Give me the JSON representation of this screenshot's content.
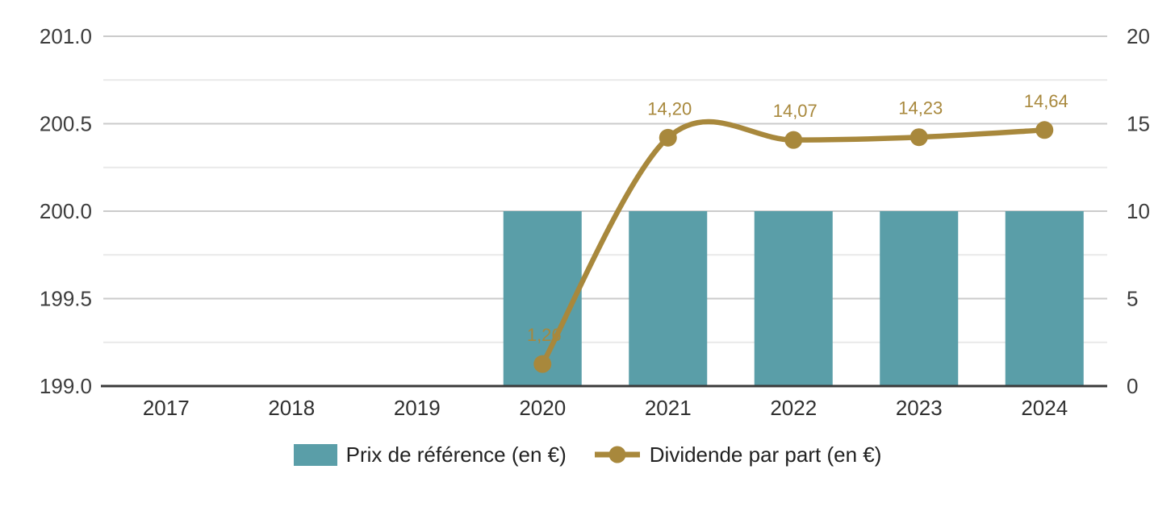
{
  "chart_data": {
    "type": "bar",
    "subtype": "combo-bar-line",
    "title": "",
    "categories": [
      "2017",
      "2018",
      "2019",
      "2020",
      "2021",
      "2022",
      "2023",
      "2024"
    ],
    "series": [
      {
        "name": "Prix de référence (en €)",
        "type": "bar",
        "axis": "left",
        "color": "#5A9EA8",
        "values": [
          null,
          null,
          null,
          200.0,
          200.0,
          200.0,
          200.0,
          200.0
        ]
      },
      {
        "name": "Dividende par part (en €)",
        "type": "line",
        "axis": "right",
        "color": "#A8883C",
        "values": [
          null,
          null,
          null,
          1.26,
          14.2,
          14.07,
          14.23,
          14.64
        ],
        "point_labels": [
          null,
          null,
          null,
          "1,26",
          "14,20",
          "14,07",
          "14,23",
          "14,64"
        ]
      }
    ],
    "left_axis": {
      "min": 199.0,
      "max": 201.0,
      "major_step": 0.5,
      "minor_step": 0.25,
      "tick_labels": [
        "199.0",
        "199.5",
        "200.0",
        "200.5",
        "201.0"
      ]
    },
    "right_axis": {
      "min": 0,
      "max": 20,
      "major_step": 5,
      "minor_step": 2.5,
      "tick_labels": [
        "0",
        "5",
        "10",
        "15",
        "20"
      ]
    },
    "grid": true,
    "legend_position": "bottom"
  },
  "legend": {
    "items": [
      {
        "label": "Prix de référence (en €)",
        "color": "#5A9EA8",
        "symbol": "square"
      },
      {
        "label": "Dividende par part (en €)",
        "color": "#A8883C",
        "symbol": "line-dot"
      }
    ]
  },
  "colors": {
    "bar": "#5A9EA8",
    "line": "#A8883C",
    "grid_major": "#CBCBCB",
    "grid_minor": "#E9E9E9",
    "axis_baseline": "#3A3A3A",
    "axis_text": "#3D3D3D",
    "category_text": "#303030",
    "background": "#FFFFFF"
  }
}
